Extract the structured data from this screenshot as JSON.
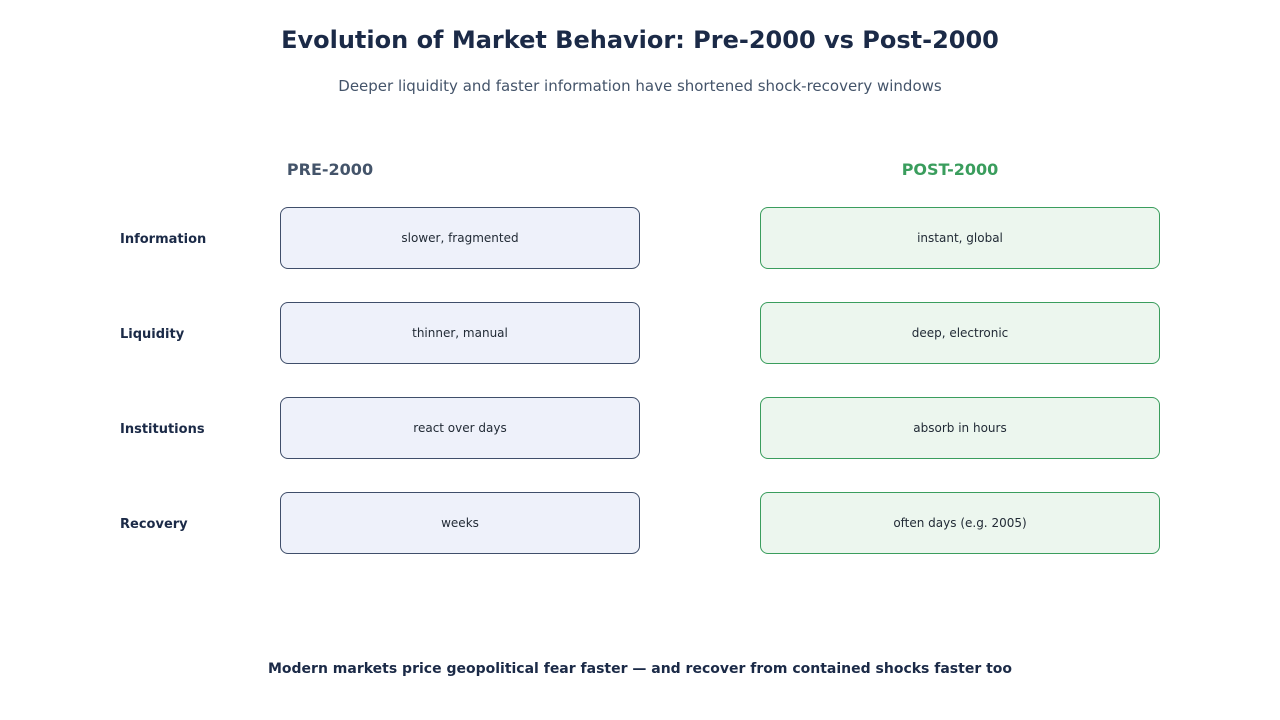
{
  "title": "Evolution of Market Behavior: Pre-2000 vs Post-2000",
  "subtitle": "Deeper liquidity and faster information have shortened shock-recovery windows",
  "columns": {
    "pre": "PRE-2000",
    "post": "POST-2000"
  },
  "rows": [
    {
      "label": "Information",
      "pre": "slower, fragmented",
      "post": "instant, global"
    },
    {
      "label": "Liquidity",
      "pre": "thinner, manual",
      "post": "deep, electronic"
    },
    {
      "label": "Institutions",
      "pre": "react over days",
      "post": "absorb in hours"
    },
    {
      "label": "Recovery",
      "pre": "weeks",
      "post": "often days (e.g. 2005)"
    }
  ],
  "footer": "Modern markets price geopolitical fear faster — and recover from contained shocks faster too",
  "colors": {
    "title": "#1b2a47",
    "pre_accent": "#3f4e6a",
    "post_accent": "#3a9d5d",
    "pre_fill": "#eef1fa",
    "post_fill": "#ecf6ee"
  }
}
